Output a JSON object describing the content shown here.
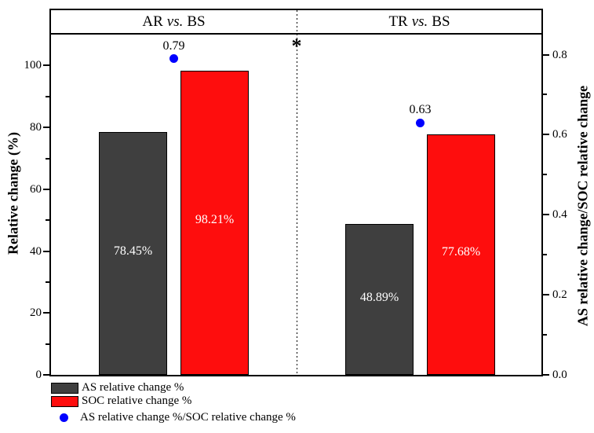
{
  "chart_data": {
    "type": "bar",
    "panels": [
      {
        "pre": "AR",
        "vs": "vs.",
        "post": "BS"
      },
      {
        "pre": "TR",
        "vs": "vs.",
        "post": "BS"
      }
    ],
    "categories": [
      "AR vs. BS",
      "TR vs. BS"
    ],
    "series": [
      {
        "name": "AS relative change %",
        "type": "bar",
        "axis": "left",
        "color": "#3f3f3f",
        "values": [
          78.45,
          48.89
        ],
        "value_labels": [
          "78.45%",
          "48.89%"
        ]
      },
      {
        "name": "SOC relative change %",
        "type": "bar",
        "axis": "left",
        "color": "#fe0d0d",
        "values": [
          98.21,
          77.68
        ],
        "value_labels": [
          "98.21%",
          "77.68%"
        ]
      },
      {
        "name": "AS relative change %/SOC relative change %",
        "type": "scatter",
        "axis": "right",
        "color": "#0000ff",
        "values": [
          0.79,
          0.63
        ],
        "value_labels": [
          "0.79",
          "0.63"
        ]
      }
    ],
    "left_axis": {
      "title": "Relative change (%)",
      "range": [
        0,
        110
      ],
      "major_ticks": [
        0,
        20,
        40,
        60,
        80,
        100
      ],
      "tick_labels": [
        "0",
        "20",
        "40",
        "60",
        "80",
        "100"
      ],
      "minor_ticks": [
        10,
        30,
        50,
        70,
        90
      ]
    },
    "right_axis": {
      "title": "AS relative change/SOC relative change",
      "range": [
        0,
        0.85
      ],
      "major_ticks": [
        0,
        0.2,
        0.4,
        0.6,
        0.8
      ],
      "tick_labels": [
        "0.0",
        "0.2",
        "0.4",
        "0.6",
        "0.8"
      ],
      "minor_ticks": [
        0.1,
        0.3,
        0.5,
        0.7
      ]
    },
    "separator_annotation": "*",
    "legend_position": "bottom-left",
    "grid": false
  }
}
